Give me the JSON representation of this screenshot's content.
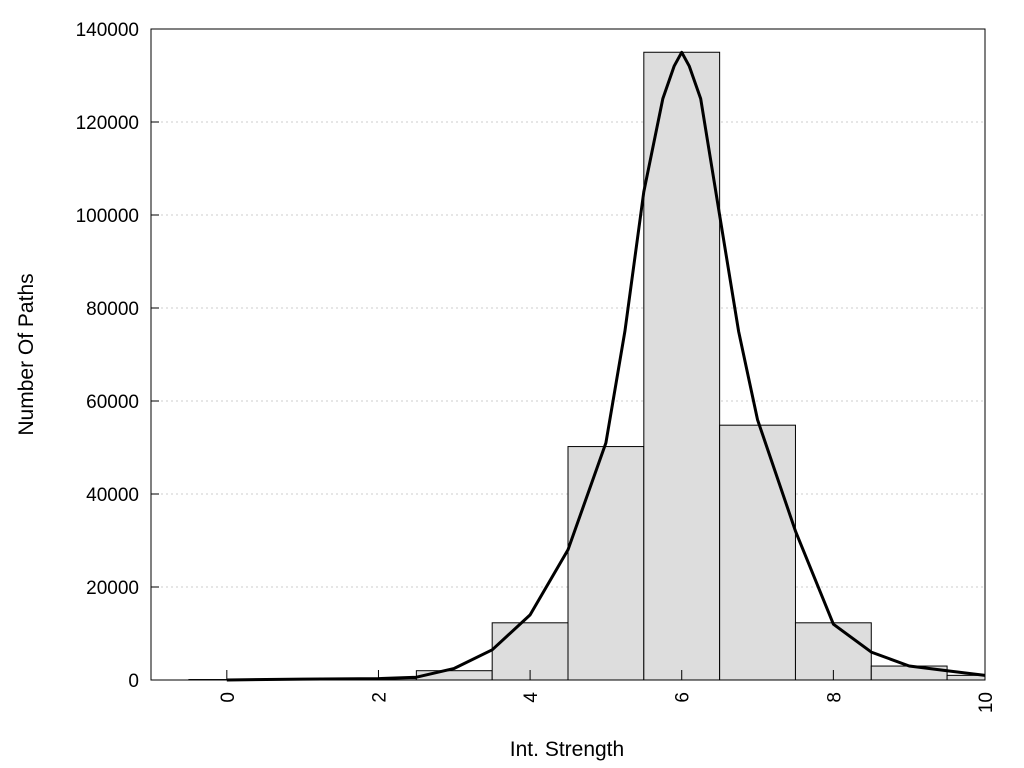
{
  "chart_data": {
    "type": "bar",
    "title": "",
    "xlabel": "Int. Strength",
    "ylabel": "Number Of Paths",
    "xlim": [
      -1,
      10
    ],
    "ylim": [
      0,
      140000
    ],
    "x_ticks": [
      0,
      2,
      4,
      6,
      8,
      10
    ],
    "x_tick_labels": [
      "0",
      "2",
      "4",
      "6",
      "8",
      "10"
    ],
    "y_ticks": [
      0,
      20000,
      40000,
      60000,
      80000,
      100000,
      120000,
      140000
    ],
    "y_tick_labels": [
      "0",
      "20000",
      "40000",
      "60000",
      "80000",
      "100000",
      "120000",
      "140000"
    ],
    "grid": "horizontal-dotted",
    "bar_color": "#dddddd",
    "line_color": "#000000",
    "bins": [
      {
        "x": 0,
        "value": 100
      },
      {
        "x": 1,
        "value": 200
      },
      {
        "x": 2,
        "value": 300
      },
      {
        "x": 3,
        "value": 2000
      },
      {
        "x": 4,
        "value": 12300
      },
      {
        "x": 5,
        "value": 50200
      },
      {
        "x": 6,
        "value": 135000
      },
      {
        "x": 7,
        "value": 54800
      },
      {
        "x": 8,
        "value": 12300
      },
      {
        "x": 9,
        "value": 3000
      },
      {
        "x": 10,
        "value": 1000
      }
    ],
    "fit_curve": {
      "x": [
        0,
        1,
        2,
        2.5,
        3,
        3.5,
        4,
        4.5,
        5,
        5.25,
        5.5,
        5.75,
        5.9,
        6,
        6.1,
        6.25,
        6.5,
        6.75,
        7,
        7.5,
        8,
        8.5,
        9,
        9.5,
        10
      ],
      "y": [
        0,
        200,
        300,
        600,
        2500,
        6500,
        14000,
        28000,
        51000,
        75000,
        105000,
        125000,
        132000,
        135000,
        132000,
        125000,
        100000,
        75000,
        56000,
        32000,
        12000,
        6000,
        3000,
        2000,
        1000
      ]
    }
  }
}
